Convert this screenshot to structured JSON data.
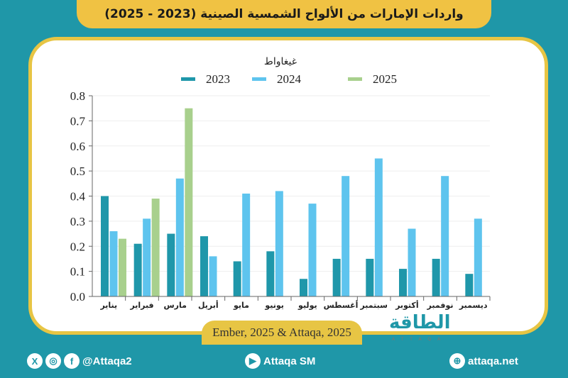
{
  "header": {
    "title": "واردات الإمارات من الألواح الشمسية الصينية (2023 - 2025)"
  },
  "source": "Ember, 2025 & Attaqa, 2025",
  "logo": {
    "ar": "الطاقة",
    "en": "ATTAQA"
  },
  "footer": {
    "social_handle": "@Attaqa2",
    "youtube": "Attaqa SM",
    "website": "attaqa.net",
    "icons": [
      "x-icon",
      "instagram-icon",
      "facebook-icon",
      "youtube-icon",
      "globe-icon"
    ]
  },
  "chart_data": {
    "type": "bar",
    "unit_label": "غيغاواط",
    "categories": [
      "يناير",
      "فبراير",
      "مارس",
      "أبريل",
      "مايو",
      "يونيو",
      "يوليو",
      "أغسطس",
      "سبتمبر",
      "أكتوبر",
      "نوفمبر",
      "ديسمبر"
    ],
    "series": [
      {
        "name": "2023",
        "color": "#1f97aa",
        "values": [
          0.4,
          0.21,
          0.25,
          0.24,
          0.14,
          0.18,
          0.07,
          0.15,
          0.15,
          0.11,
          0.15,
          0.09
        ]
      },
      {
        "name": "2024",
        "color": "#5ec4ee",
        "values": [
          0.26,
          0.31,
          0.47,
          0.16,
          0.41,
          0.42,
          0.37,
          0.48,
          0.55,
          0.27,
          0.48,
          0.31
        ]
      },
      {
        "name": "2025",
        "color": "#a8d08d",
        "values": [
          0.23,
          0.39,
          0.75,
          null,
          null,
          null,
          null,
          null,
          null,
          null,
          null,
          null
        ]
      }
    ],
    "ylim": [
      0,
      0.8
    ],
    "yticks": [
      "0.0",
      "0.1",
      "0.2",
      "0.3",
      "0.4",
      "0.5",
      "0.6",
      "0.7",
      "0.8"
    ],
    "grid": true,
    "legend": "top"
  }
}
